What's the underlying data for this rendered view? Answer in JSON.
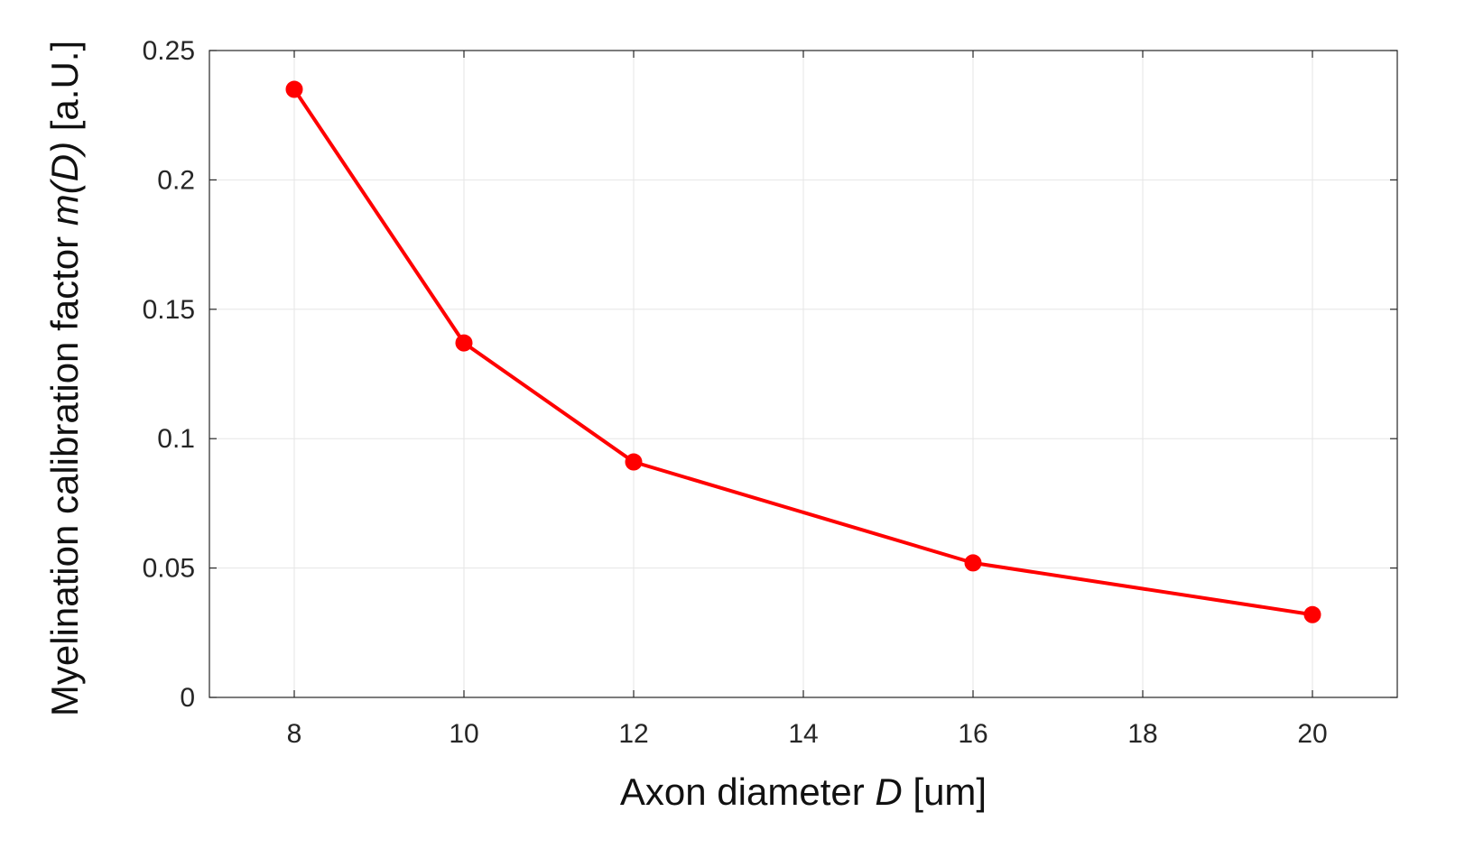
{
  "chart_data": {
    "type": "line",
    "xlabel_parts": [
      "Axon diameter ",
      "D",
      " [um]"
    ],
    "ylabel_parts": [
      "Myelination calibration factor ",
      "m(D)",
      " [a.U.]"
    ],
    "xlim": [
      7,
      21
    ],
    "ylim": [
      0,
      0.25
    ],
    "xticks": [
      8,
      10,
      12,
      14,
      16,
      18,
      20
    ],
    "yticks": [
      0,
      0.05,
      0.1,
      0.15,
      0.2,
      0.25
    ],
    "ytick_labels": [
      "0",
      "0.05",
      "0.1",
      "0.15",
      "0.2",
      "0.25"
    ],
    "grid": true,
    "series": [
      {
        "color": "#ff0000",
        "marker": "circle",
        "x": [
          8,
          10,
          12,
          16,
          20
        ],
        "y": [
          0.235,
          0.137,
          0.091,
          0.052,
          0.032
        ]
      }
    ]
  }
}
